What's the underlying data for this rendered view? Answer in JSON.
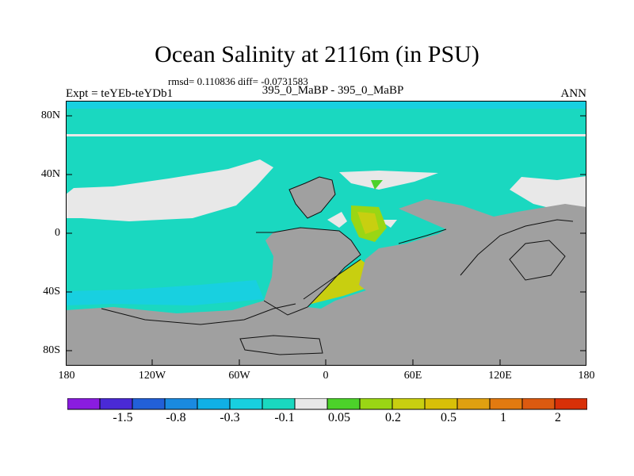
{
  "title": "Ocean Salinity at 2116m (in PSU)",
  "stats": "rmsd= 0.110836 diff= -0.0731583",
  "left_label": "Expt = teYEb-teYDb1",
  "center_label": "395_0_MaBP - 395_0_MaBP",
  "right_label": "ANN",
  "axes": {
    "y_ticks": [
      "80N",
      "40N",
      "0",
      "40S",
      "80S"
    ],
    "x_ticks": [
      "180",
      "120W",
      "60W",
      "0",
      "60E",
      "120E",
      "180"
    ]
  },
  "colorbar": {
    "colors": [
      "#8a1ce0",
      "#4a2ad6",
      "#2260d8",
      "#1a8ae0",
      "#10b0e6",
      "#18d0e0",
      "#1ad8c0",
      "#e8e8e8",
      "#4cd22a",
      "#9ad614",
      "#c8cf10",
      "#d8c008",
      "#e0a010",
      "#e27a10",
      "#dc5a10",
      "#d83008"
    ],
    "labels": [
      "-1.5",
      "-0.8",
      "-0.3",
      "-0.1",
      "0.05",
      "0.2",
      "0.5",
      "1",
      "2"
    ]
  },
  "colors": {
    "land": "#a0a0a0",
    "ocean_background": "#1ad8c0",
    "near_zero": "#e8e8e8"
  }
}
